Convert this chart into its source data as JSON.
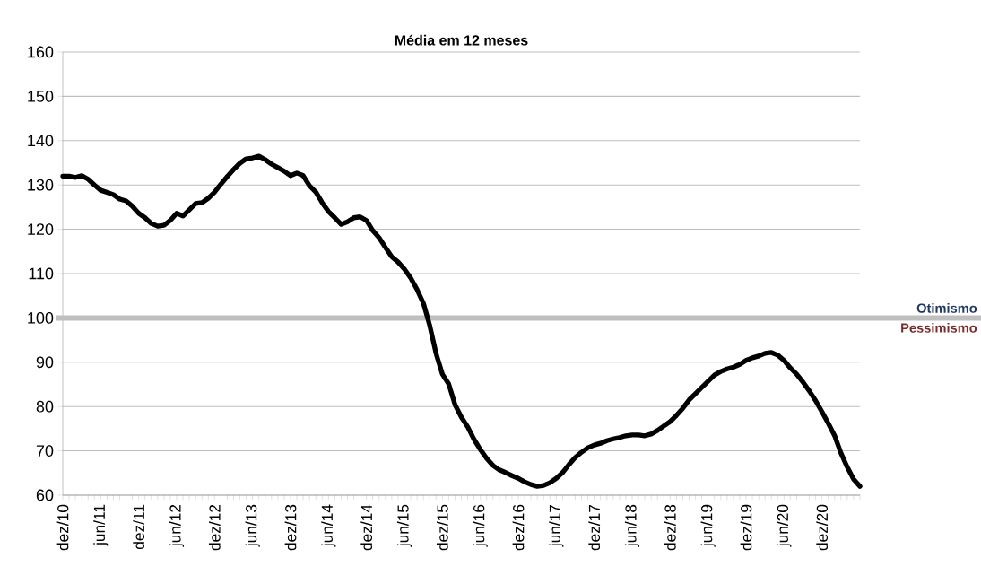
{
  "chart_data": {
    "type": "line",
    "title": "Média em 12 meses",
    "categories": [
      "dez/10",
      null,
      null,
      null,
      null,
      null,
      "jun/11",
      null,
      null,
      null,
      null,
      null,
      "dez/11",
      null,
      null,
      null,
      null,
      null,
      "jun/12",
      null,
      null,
      null,
      null,
      null,
      "dez/12",
      null,
      null,
      null,
      null,
      null,
      "jun/13",
      null,
      null,
      null,
      null,
      null,
      "dez/13",
      null,
      null,
      null,
      null,
      null,
      "jun/14",
      null,
      null,
      null,
      null,
      null,
      "dez/14",
      null,
      null,
      null,
      null,
      null,
      "jun/15",
      null,
      null,
      null,
      null,
      null,
      "dez/15",
      null,
      null,
      null,
      null,
      null,
      "jun/16",
      null,
      null,
      null,
      null,
      null,
      "dez/16",
      null,
      null,
      null,
      null,
      null,
      "jun/17",
      null,
      null,
      null,
      null,
      null,
      "dez/17",
      null,
      null,
      null,
      null,
      null,
      "jun/18",
      null,
      null,
      null,
      null,
      null,
      "dez/18",
      null,
      null,
      null,
      null,
      null,
      "jun/19",
      null,
      null,
      null,
      null,
      null,
      "dez/19",
      null,
      null,
      null,
      null,
      null,
      "jun/20",
      null,
      null,
      null,
      null,
      null,
      "dez/20",
      null,
      null,
      null,
      null,
      null,
      null
    ],
    "series": [
      {
        "color": "#000000",
        "values": [
          132,
          132,
          131.7,
          132.1,
          131.3,
          130,
          128.8,
          128.3,
          127.8,
          126.8,
          126.4,
          125.2,
          123.6,
          122.6,
          121.3,
          120.7,
          120.9,
          122,
          123.6,
          123,
          124.4,
          125.8,
          126,
          127,
          128.4,
          130.2,
          131.9,
          133.5,
          134.9,
          135.9,
          136.1,
          136.5,
          135.7,
          134.7,
          133.9,
          133.1,
          132.1,
          132.7,
          132.1,
          129.8,
          128.4,
          126,
          124,
          122.6,
          121.1,
          121.7,
          122.6,
          122.8,
          122,
          119.7,
          118.1,
          115.9,
          113.8,
          112.6,
          111,
          109,
          106.4,
          103.3,
          98.3,
          92,
          87.3,
          85.1,
          80.4,
          77.6,
          75.4,
          72.6,
          70.3,
          68.3,
          66.7,
          65.7,
          65.1,
          64.4,
          63.8,
          63,
          62.4,
          62,
          62.2,
          62.8,
          63.8,
          65.1,
          66.9,
          68.5,
          69.7,
          70.7,
          71.3,
          71.7,
          72.3,
          72.7,
          73,
          73.4,
          73.6,
          73.6,
          73.4,
          73.8,
          74.6,
          75.6,
          76.6,
          78,
          79.6,
          81.5,
          82.9,
          84.3,
          85.7,
          87.1,
          87.9,
          88.5,
          88.9,
          89.5,
          90.4,
          91,
          91.4,
          92,
          92.2,
          91.6,
          90.4,
          88.7,
          87.3,
          85.5,
          83.5,
          81.3,
          78.8,
          76.2,
          73.4,
          69.5,
          66.3,
          63.6,
          62
        ]
      }
    ],
    "ylim": [
      60,
      160
    ],
    "yticks": [
      60,
      70,
      80,
      90,
      100,
      110,
      120,
      130,
      140,
      150,
      160
    ],
    "grid": "y",
    "marker": "none",
    "line_style": "solid",
    "ref_lines": [
      {
        "axis": "y",
        "value": 100,
        "color": "#bfbfbf"
      }
    ],
    "annotations": [
      "Otimismo",
      "Pessimismo"
    ]
  }
}
